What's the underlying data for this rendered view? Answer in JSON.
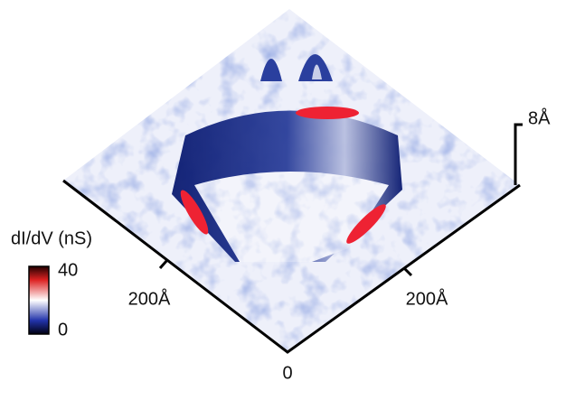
{
  "colorbar": {
    "label": "dI/dV (nS)",
    "max": "40",
    "min": "0"
  },
  "axes": {
    "left_label": "200Å",
    "right_label": "200Å",
    "origin": "0",
    "height": "8Å"
  }
}
